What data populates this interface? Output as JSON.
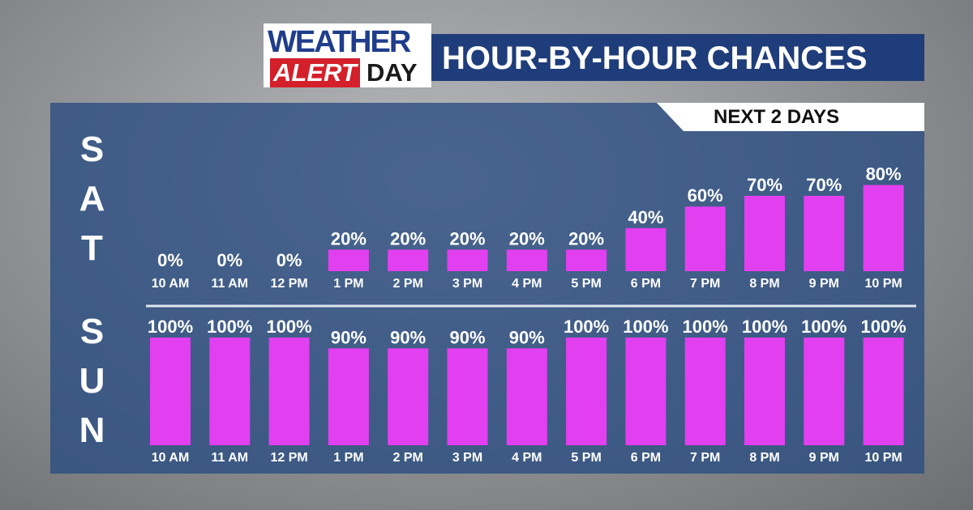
{
  "logo": {
    "top": "WEATHER",
    "left": "ALERT",
    "right": "DAY"
  },
  "title": "HOUR-BY-HOUR CHANCES",
  "subtitle": "NEXT 2 DAYS",
  "chart_data": [
    {
      "type": "bar",
      "label": "SAT",
      "color": "#e23ff0",
      "ylim": [
        0,
        100
      ],
      "categories": [
        "10 AM",
        "11 AM",
        "12 PM",
        "1 PM",
        "2 PM",
        "3 PM",
        "4 PM",
        "5 PM",
        "6 PM",
        "7 PM",
        "8 PM",
        "9 PM",
        "10 PM"
      ],
      "values": [
        0,
        0,
        0,
        20,
        20,
        20,
        20,
        20,
        40,
        60,
        70,
        70,
        80
      ],
      "value_labels": [
        "0%",
        "0%",
        "0%",
        "20%",
        "20%",
        "20%",
        "20%",
        "20%",
        "40%",
        "60%",
        "70%",
        "70%",
        "80%"
      ]
    },
    {
      "type": "bar",
      "label": "SUN",
      "color": "#e23ff0",
      "ylim": [
        0,
        100
      ],
      "categories": [
        "10 AM",
        "11 AM",
        "12 PM",
        "1 PM",
        "2 PM",
        "3 PM",
        "4 PM",
        "5 PM",
        "6 PM",
        "7 PM",
        "8 PM",
        "9 PM",
        "10 PM"
      ],
      "values": [
        100,
        100,
        100,
        90,
        90,
        90,
        90,
        100,
        100,
        100,
        100,
        100,
        100
      ],
      "value_labels": [
        "100%",
        "100%",
        "100%",
        "90%",
        "90%",
        "90%",
        "90%",
        "100%",
        "100%",
        "100%",
        "100%",
        "100%",
        "100%"
      ]
    }
  ]
}
